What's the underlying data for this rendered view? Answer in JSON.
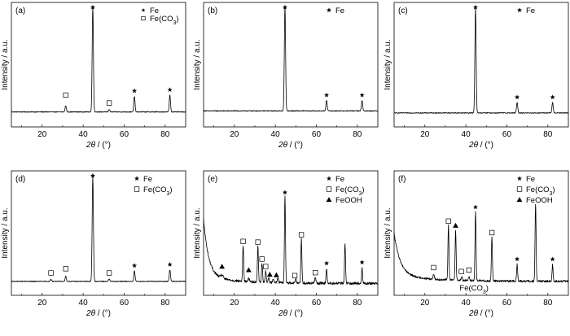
{
  "chart_data": [
    {
      "type": "line",
      "panel": "(a)",
      "xlabel": "2θ / (°)",
      "ylabel": "Intensity / a.u.",
      "xlim": [
        5,
        90
      ],
      "xticks": [
        20,
        40,
        60,
        80
      ],
      "baseline": 0.05,
      "peaks": [
        {
          "x": 31.5,
          "y": 0.06,
          "w": 0.3
        },
        {
          "x": 44.7,
          "y": 1.0,
          "w": 0.3
        },
        {
          "x": 52.7,
          "y": 0.025,
          "w": 0.3
        },
        {
          "x": 65.0,
          "y": 0.15,
          "w": 0.3
        },
        {
          "x": 82.3,
          "y": 0.16,
          "w": 0.3
        }
      ],
      "markers": [
        {
          "x": 31.5,
          "shape": "square",
          "dy": 0.1
        },
        {
          "x": 44.7,
          "shape": "star",
          "dy": 0.04
        },
        {
          "x": 52.7,
          "shape": "square",
          "dy": 0.06
        },
        {
          "x": 65.0,
          "shape": "star",
          "dy": 0.05
        },
        {
          "x": 82.3,
          "shape": "star",
          "dy": 0.05
        }
      ],
      "legend": [
        {
          "shape": "star",
          "label": "Fe"
        },
        {
          "shape": "square",
          "label": "Fe(CO3)"
        }
      ],
      "legend_small": true
    },
    {
      "type": "line",
      "panel": "(b)",
      "xlabel": "2θ / (°)",
      "ylabel": "Intensity / a.u.",
      "xlim": [
        5,
        90
      ],
      "xticks": [
        20,
        40,
        60,
        80
      ],
      "baseline": 0.06,
      "peaks": [
        {
          "x": 44.7,
          "y": 1.0,
          "w": 0.3
        },
        {
          "x": 65.0,
          "y": 0.1,
          "w": 0.3
        },
        {
          "x": 82.3,
          "y": 0.1,
          "w": 0.3
        }
      ],
      "markers": [
        {
          "x": 44.7,
          "shape": "star",
          "dy": 0.04
        },
        {
          "x": 65.0,
          "shape": "star",
          "dy": 0.05
        },
        {
          "x": 82.3,
          "shape": "star",
          "dy": 0.05
        }
      ],
      "legend": [
        {
          "shape": "star",
          "label": "Fe"
        }
      ],
      "legend_small": false
    },
    {
      "type": "line",
      "panel": "(c)",
      "xlabel": "2θ / (°)",
      "ylabel": "Intensity / a.u.",
      "xlim": [
        5,
        90
      ],
      "xticks": [
        20,
        40,
        60,
        80
      ],
      "baseline": 0.04,
      "peaks": [
        {
          "x": 44.7,
          "y": 1.0,
          "w": 0.3
        },
        {
          "x": 65.0,
          "y": 0.1,
          "w": 0.3
        },
        {
          "x": 82.3,
          "y": 0.1,
          "w": 0.3
        }
      ],
      "markers": [
        {
          "x": 44.7,
          "shape": "star",
          "dy": 0.04
        },
        {
          "x": 65.0,
          "shape": "star",
          "dy": 0.05
        },
        {
          "x": 82.3,
          "shape": "star",
          "dy": 0.05
        }
      ],
      "legend": [
        {
          "shape": "star",
          "label": "Fe"
        }
      ],
      "legend_small": false
    },
    {
      "type": "line",
      "panel": "(d)",
      "xlabel": "2θ / (°)",
      "ylabel": "Intensity / a.u.",
      "xlim": [
        5,
        90
      ],
      "xticks": [
        20,
        40,
        60,
        80
      ],
      "baseline": 0.04,
      "peaks": [
        {
          "x": 24.3,
          "y": 0.02,
          "w": 0.3
        },
        {
          "x": 31.5,
          "y": 0.05,
          "w": 0.3
        },
        {
          "x": 44.7,
          "y": 1.0,
          "w": 0.3
        },
        {
          "x": 52.7,
          "y": 0.02,
          "w": 0.3
        },
        {
          "x": 65.0,
          "y": 0.1,
          "w": 0.3
        },
        {
          "x": 82.3,
          "y": 0.11,
          "w": 0.3
        }
      ],
      "markers": [
        {
          "x": 24.3,
          "shape": "square",
          "dy": 0.06
        },
        {
          "x": 31.5,
          "shape": "square",
          "dy": 0.07
        },
        {
          "x": 44.7,
          "shape": "star",
          "dy": 0.04
        },
        {
          "x": 52.7,
          "shape": "square",
          "dy": 0.06
        },
        {
          "x": 65.0,
          "shape": "star",
          "dy": 0.05
        },
        {
          "x": 82.3,
          "shape": "star",
          "dy": 0.05
        }
      ],
      "legend": [
        {
          "shape": "star",
          "label": "Fe"
        },
        {
          "shape": "square",
          "label": "Fe(CO3)"
        }
      ],
      "legend_small": false
    },
    {
      "type": "line",
      "panel": "(e)",
      "xlabel": "2θ / (°)",
      "ylabel": "Intensity / a.u.",
      "xlim": [
        5,
        90
      ],
      "xticks": [
        20,
        40,
        60,
        80
      ],
      "baseline": 0.02,
      "decay": {
        "amp": 0.55,
        "tau": 2.5
      },
      "noise": 0.012,
      "peaks": [
        {
          "x": 14.0,
          "y": 0.03,
          "w": 0.6
        },
        {
          "x": 24.3,
          "y": 0.34,
          "w": 0.25
        },
        {
          "x": 27.0,
          "y": 0.03,
          "w": 0.4
        },
        {
          "x": 31.5,
          "y": 0.34,
          "w": 0.25
        },
        {
          "x": 33.5,
          "y": 0.18,
          "w": 0.25
        },
        {
          "x": 35.3,
          "y": 0.11,
          "w": 0.25
        },
        {
          "x": 36.7,
          "y": 0.04,
          "w": 0.3
        },
        {
          "x": 39.0,
          "y": 0.04,
          "w": 0.3
        },
        {
          "x": 41.3,
          "y": 0.04,
          "w": 0.3
        },
        {
          "x": 44.7,
          "y": 0.82,
          "w": 0.25
        },
        {
          "x": 50.0,
          "y": 0.04,
          "w": 0.3
        },
        {
          "x": 52.7,
          "y": 0.42,
          "w": 0.25
        },
        {
          "x": 59.5,
          "y": 0.05,
          "w": 0.3
        },
        {
          "x": 65.0,
          "y": 0.14,
          "w": 0.25
        },
        {
          "x": 74.0,
          "y": 0.38,
          "w": 0.25
        },
        {
          "x": 82.3,
          "y": 0.15,
          "w": 0.25
        }
      ],
      "markers": [
        {
          "x": 14.0,
          "shape": "triangle",
          "dy": 0.08
        },
        {
          "x": 24.3,
          "shape": "square",
          "dy": 0.04
        },
        {
          "x": 27.0,
          "shape": "triangle",
          "dy": 0.08
        },
        {
          "x": 31.5,
          "shape": "square",
          "dy": 0.04
        },
        {
          "x": 33.5,
          "shape": "square",
          "dy": 0.04
        },
        {
          "x": 35.3,
          "shape": "square",
          "dy": 0.04
        },
        {
          "x": 37.3,
          "shape": "triangle",
          "dy": 0.07
        },
        {
          "x": 40.5,
          "shape": "triangle",
          "dy": 0.07
        },
        {
          "x": 44.7,
          "shape": "star",
          "dy": 0.04
        },
        {
          "x": 49.5,
          "shape": "square",
          "dy": 0.06
        },
        {
          "x": 52.7,
          "shape": "square",
          "dy": 0.04
        },
        {
          "x": 59.5,
          "shape": "square",
          "dy": 0.05
        },
        {
          "x": 65.0,
          "shape": "star",
          "dy": 0.05
        },
        {
          "x": 82.3,
          "shape": "star",
          "dy": 0.05
        }
      ],
      "legend": [
        {
          "shape": "star",
          "label": "Fe"
        },
        {
          "shape": "square",
          "label": "Fe(CO3)"
        },
        {
          "shape": "triangle",
          "label": "FeOOH"
        }
      ],
      "legend_small": false
    },
    {
      "type": "line",
      "panel": "(f)",
      "xlabel": "2θ / (°)",
      "ylabel": "Intensity / a.u.",
      "xlim": [
        5,
        90
      ],
      "xticks": [
        20,
        40,
        60,
        80
      ],
      "baseline": 0.04,
      "decay": {
        "amp": 0.4,
        "tau": 3.0
      },
      "noise": 0.01,
      "peaks": [
        {
          "x": 24.3,
          "y": 0.05,
          "w": 0.3
        },
        {
          "x": 31.5,
          "y": 0.52,
          "w": 0.25
        },
        {
          "x": 35.0,
          "y": 0.48,
          "w": 0.25
        },
        {
          "x": 38.0,
          "y": 0.03,
          "w": 0.3
        },
        {
          "x": 41.5,
          "y": 0.04,
          "w": 0.3
        },
        {
          "x": 44.7,
          "y": 0.66,
          "w": 0.25
        },
        {
          "x": 52.7,
          "y": 0.42,
          "w": 0.25
        },
        {
          "x": 65.0,
          "y": 0.16,
          "w": 0.25
        },
        {
          "x": 74.0,
          "y": 0.74,
          "w": 0.25
        },
        {
          "x": 82.3,
          "y": 0.16,
          "w": 0.25
        }
      ],
      "markers": [
        {
          "x": 24.3,
          "shape": "square",
          "dy": 0.06
        },
        {
          "x": 31.5,
          "shape": "square",
          "dy": 0.04
        },
        {
          "x": 35.0,
          "shape": "triangle",
          "dy": 0.04
        },
        {
          "x": 37.8,
          "shape": "square",
          "dy": 0.06
        },
        {
          "x": 41.5,
          "shape": "square",
          "dy": 0.06
        },
        {
          "x": 44.7,
          "shape": "star",
          "dy": 0.04
        },
        {
          "x": 52.7,
          "shape": "square",
          "dy": 0.04
        },
        {
          "x": 65.0,
          "shape": "star",
          "dy": 0.05
        },
        {
          "x": 82.3,
          "shape": "star",
          "dy": 0.05
        }
      ],
      "legend": [
        {
          "shape": "star",
          "label": "Fe"
        },
        {
          "shape": "square",
          "label": "Fe(CO3)"
        },
        {
          "shape": "triangle",
          "label": "FeOOH"
        }
      ],
      "legend_small": false,
      "annotation": "Fe(CO3)"
    }
  ]
}
